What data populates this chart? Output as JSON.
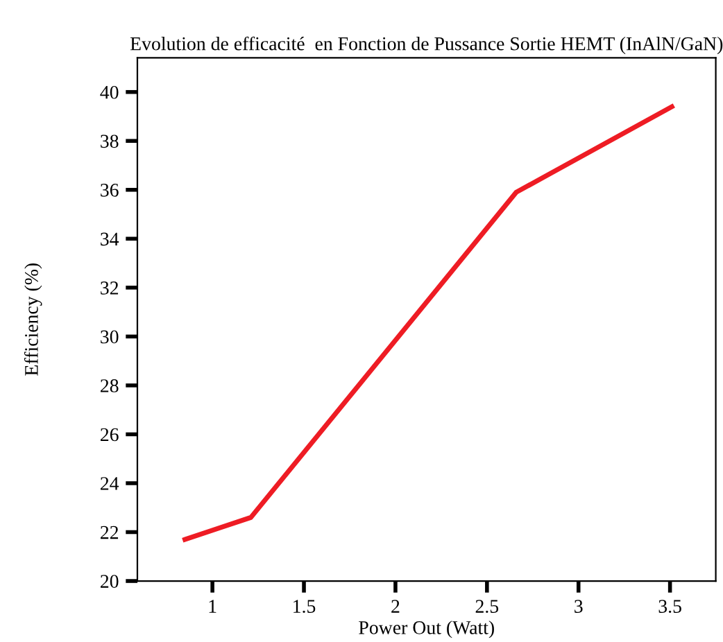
{
  "chart_data": {
    "type": "line",
    "title": "Evolution de efficacité  en Fonction de Pussance Sortie HEMT (InAlN/GaN)",
    "xlabel": "Power Out (Watt)",
    "ylabel": "Efficiency (%)",
    "x": [
      0.85,
      1.21,
      2.66,
      3.51
    ],
    "series": [
      {
        "color": "#ee1c24",
        "values": [
          21.7,
          22.6,
          35.9,
          39.4
        ]
      }
    ],
    "xlim": [
      0.59,
      3.75
    ],
    "ylim": [
      20,
      41.4
    ],
    "xticks": [
      1,
      1.5,
      2,
      2.5,
      3,
      3.5
    ],
    "yticks": [
      20,
      22,
      24,
      26,
      28,
      30,
      32,
      34,
      36,
      38,
      40
    ],
    "grid": false,
    "legend": false,
    "marker": "none",
    "line_style": "solid"
  }
}
